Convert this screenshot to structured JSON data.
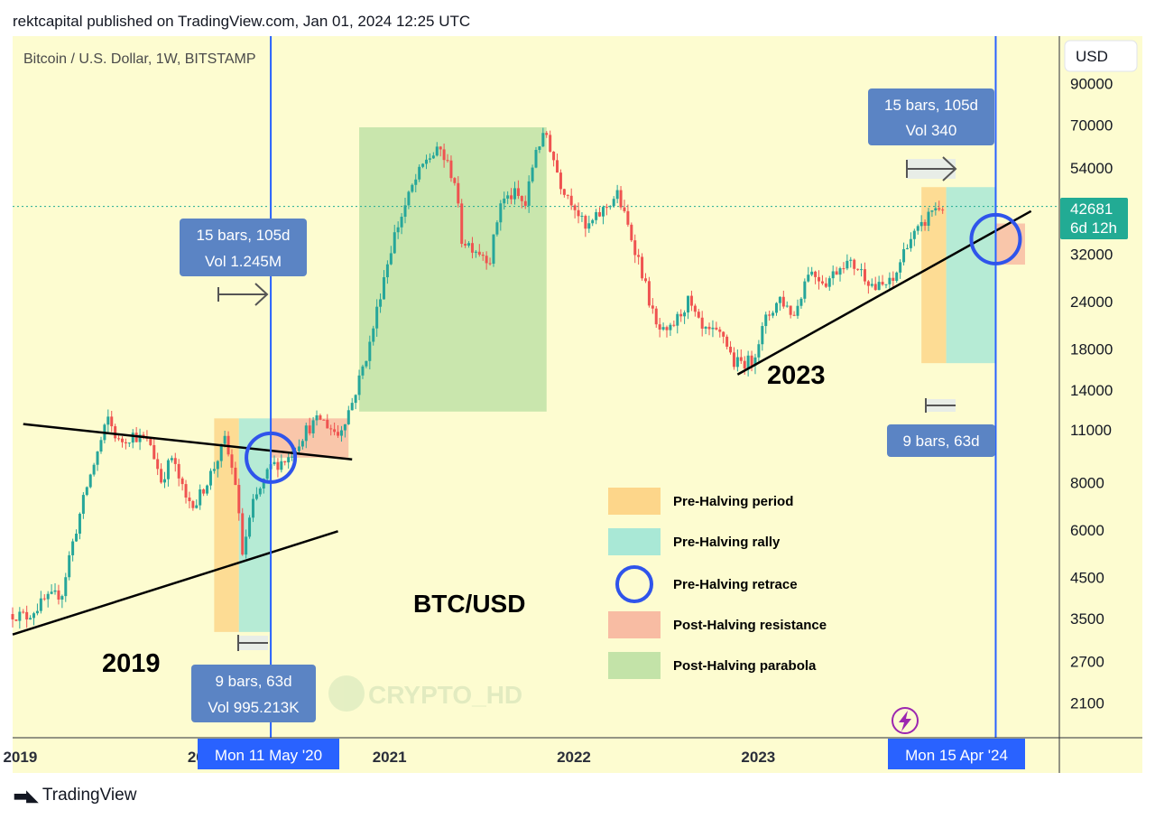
{
  "header": {
    "attribution": "rektcapital published on TradingView.com, Jan 01, 2024 12:25 UTC",
    "symbol": "Bitcoin / U.S. Dollar, 1W, BITSTAMP",
    "currency_button": "USD",
    "last_price": "42681",
    "countdown": "6d 12h"
  },
  "annotations": {
    "label_2019": "2019",
    "label_2023": "2023",
    "label_pair": "BTC/USD",
    "watermark": "CRYPTO_HD",
    "measure_1_line1": "15 bars, 105d",
    "measure_1_line2": "Vol 1.245M",
    "measure_2_line1": "9 bars, 63d",
    "measure_2_line2": "Vol 995.213K",
    "measure_3_line1": "15 bars, 105d",
    "measure_3_line2": "Vol 340",
    "measure_4_line1": "9 bars, 63d",
    "date_flag_1": "Mon 11 May '20",
    "date_flag_2": "Mon 15 Apr '24"
  },
  "legend": [
    {
      "label": "Pre-Halving period",
      "color": "#fdd68a"
    },
    {
      "label": "Pre-Halving rally",
      "color": "#a9e8d6"
    },
    {
      "label": "Pre-Halving retrace",
      "color": "#2f54eb"
    },
    {
      "label": "Post-Halving resistance",
      "color": "#f8bca3"
    },
    {
      "label": "Post-Halving parabola",
      "color": "#c3e3a8"
    }
  ],
  "footer": {
    "brand": "TradingView"
  },
  "colors": {
    "up": "#26a69a",
    "down": "#ef5350",
    "vline": "#2962ff",
    "price_tag": "#22ab94"
  },
  "chart_data": {
    "type": "candlestick",
    "title": "Bitcoin / U.S. Dollar, 1W, BITSTAMP",
    "y_scale": "log",
    "y_ticks": [
      90000,
      70000,
      54000,
      42681,
      32000,
      24000,
      18000,
      14000,
      11000,
      8000,
      6000,
      4500,
      3500,
      2700,
      2100
    ],
    "x_ticks": [
      "2019",
      "2020",
      "2021",
      "2022",
      "2023",
      "2024"
    ],
    "x_range": [
      "2018-12-17",
      "2024-08-19"
    ],
    "ylim": [
      1700,
      120000
    ],
    "vertical_lines": [
      "2020-05-11",
      "2024-04-15"
    ],
    "close_path": [
      [
        "2018-12-17",
        3600
      ],
      [
        "2019-01-14",
        3550
      ],
      [
        "2019-02-18",
        3900
      ],
      [
        "2019-03-25",
        4100
      ],
      [
        "2019-04-08",
        5100
      ],
      [
        "2019-05-13",
        7800
      ],
      [
        "2019-06-24",
        11800
      ],
      [
        "2019-07-15",
        10200
      ],
      [
        "2019-08-12",
        10700
      ],
      [
        "2019-09-16",
        10100
      ],
      [
        "2019-10-07",
        8100
      ],
      [
        "2019-10-28",
        9300
      ],
      [
        "2019-11-25",
        7200
      ],
      [
        "2019-12-16",
        7100
      ],
      [
        "2020-01-20",
        8800
      ],
      [
        "2020-02-10",
        10300
      ],
      [
        "2020-03-02",
        8000
      ],
      [
        "2020-03-16",
        5200
      ],
      [
        "2020-04-06",
        7000
      ],
      [
        "2020-05-11",
        8800
      ],
      [
        "2020-06-15",
        9300
      ],
      [
        "2020-07-20",
        11000
      ],
      [
        "2020-08-17",
        11800
      ],
      [
        "2020-09-21",
        10700
      ],
      [
        "2020-10-19",
        13000
      ],
      [
        "2020-11-23",
        18500
      ],
      [
        "2020-12-21",
        28000
      ],
      [
        "2021-01-11",
        36000
      ],
      [
        "2021-02-15",
        48000
      ],
      [
        "2021-03-15",
        57000
      ],
      [
        "2021-04-12",
        60000
      ],
      [
        "2021-05-10",
        50000
      ],
      [
        "2021-05-24",
        35000
      ],
      [
        "2021-06-21",
        33000
      ],
      [
        "2021-07-19",
        31000
      ],
      [
        "2021-08-09",
        44000
      ],
      [
        "2021-09-06",
        46000
      ],
      [
        "2021-09-27",
        43000
      ],
      [
        "2021-10-18",
        61000
      ],
      [
        "2021-11-08",
        66000
      ],
      [
        "2021-12-06",
        49000
      ],
      [
        "2022-01-03",
        43000
      ],
      [
        "2022-01-24",
        37000
      ],
      [
        "2022-03-28",
        46000
      ],
      [
        "2022-05-09",
        31000
      ],
      [
        "2022-06-13",
        20500
      ],
      [
        "2022-07-04",
        19500
      ],
      [
        "2022-08-15",
        24000
      ],
      [
        "2022-09-12",
        20000
      ],
      [
        "2022-10-24",
        19500
      ],
      [
        "2022-11-14",
        16500
      ],
      [
        "2022-12-19",
        16700
      ],
      [
        "2023-01-16",
        21500
      ],
      [
        "2023-02-13",
        24500
      ],
      [
        "2023-03-13",
        22000
      ],
      [
        "2023-04-10",
        29000
      ],
      [
        "2023-05-15",
        27000
      ],
      [
        "2023-06-19",
        30500
      ],
      [
        "2023-07-17",
        29500
      ],
      [
        "2023-08-21",
        26000
      ],
      [
        "2023-09-25",
        27000
      ],
      [
        "2023-10-23",
        34500
      ],
      [
        "2023-11-20",
        37500
      ],
      [
        "2023-12-11",
        42000
      ],
      [
        "2024-01-01",
        42681
      ]
    ],
    "trendlines": [
      {
        "from": [
          "2018-12-17",
          3180
        ],
        "to": [
          "2020-09-21",
          5950
        ]
      },
      {
        "from": [
          "2019-01-07",
          11400
        ],
        "to": [
          "2020-10-19",
          9200
        ]
      },
      {
        "from": [
          "2022-11-21",
          15400
        ],
        "to": [
          "2024-06-24",
          41500
        ]
      }
    ],
    "zones": [
      {
        "kind": "Pre-Halving period",
        "x": [
          "2020-01-20",
          "2020-03-09"
        ],
        "y": [
          3230,
          11800
        ]
      },
      {
        "kind": "Pre-Halving rally",
        "x": [
          "2020-03-09",
          "2020-05-11"
        ],
        "y": [
          3230,
          11800
        ]
      },
      {
        "kind": "Post-Halving resistance",
        "x": [
          "2020-05-11",
          "2020-10-12"
        ],
        "y": [
          9300,
          11800
        ]
      },
      {
        "kind": "Post-Halving parabola",
        "x": [
          "2020-11-02",
          "2021-11-08"
        ],
        "y": [
          12300,
          69000
        ]
      },
      {
        "kind": "Pre-Halving period",
        "x": [
          "2023-11-20",
          "2024-01-08"
        ],
        "y": [
          16500,
          48000
        ]
      },
      {
        "kind": "Pre-Halving rally",
        "x": [
          "2024-01-08",
          "2024-04-15"
        ],
        "y": [
          16500,
          48000
        ]
      },
      {
        "kind": "Post-Halving resistance",
        "x": [
          "2024-04-15",
          "2024-08-19"
        ],
        "y": [
          30000,
          38500
        ]
      },
      {
        "kind": "Post-Halving parabola",
        "x": [
          "2024-08-19",
          "2024-10-14"
        ],
        "y": [
          30000,
          120000
        ]
      }
    ],
    "retrace_markers": [
      {
        "x": "2020-05-11",
        "y": 9300
      },
      {
        "x": "2024-04-15",
        "y": 35000
      }
    ]
  }
}
